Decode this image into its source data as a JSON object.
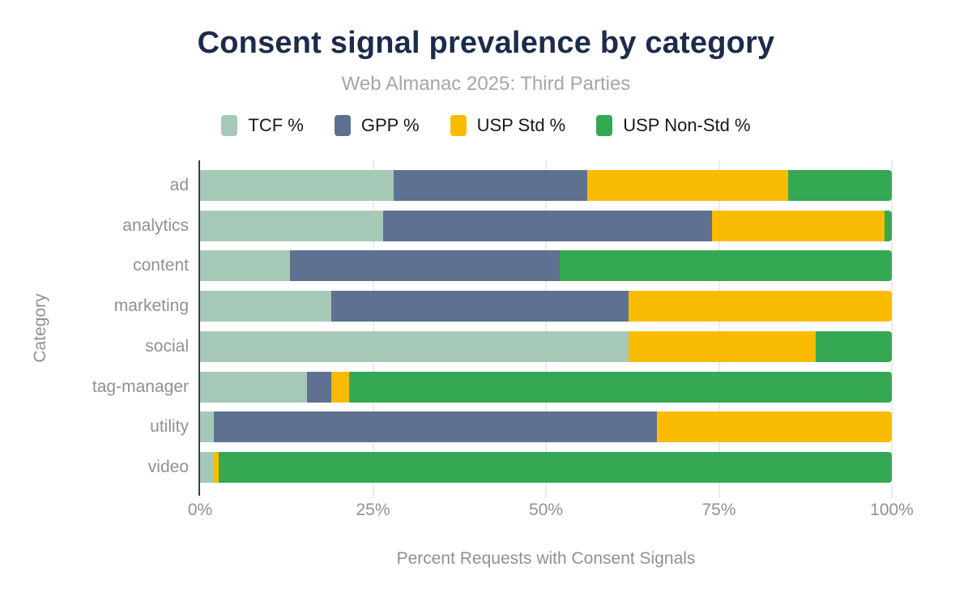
{
  "chart_data": {
    "type": "bar",
    "orientation": "horizontal",
    "stacked": true,
    "title": "Consent signal prevalence by category",
    "subtitle": "Web Almanac 2025: Third Parties",
    "categories": [
      "ad",
      "analytics",
      "content",
      "marketing",
      "social",
      "tag-manager",
      "utility",
      "video"
    ],
    "series": [
      {
        "name": "TCF %",
        "color": "#a6c9b7",
        "values": [
          28,
          26.5,
          13,
          19,
          62,
          15.5,
          2,
          2
        ]
      },
      {
        "name": "GPP %",
        "color": "#5f7190",
        "values": [
          28,
          47.5,
          39,
          43,
          0,
          3.5,
          64,
          0
        ]
      },
      {
        "name": "USP Std %",
        "color": "#fabc02",
        "values": [
          29,
          25,
          0,
          38,
          27,
          2.5,
          34,
          0.7
        ]
      },
      {
        "name": "USP Non-Std %",
        "color": "#34a853",
        "values": [
          15,
          1,
          48,
          0,
          11,
          78.5,
          0,
          97.3
        ]
      }
    ],
    "x_ticks": [
      "0%",
      "25%",
      "50%",
      "75%",
      "100%"
    ],
    "xlim": [
      0,
      100
    ],
    "xlabel": "Percent Requests with Consent Signals",
    "ylabel": "Category",
    "grid": true,
    "legend_position": "top"
  },
  "colors": {
    "title": "#1c2b4a",
    "subtitle": "#a6a6a6",
    "axis_text": "#8d9195",
    "legend_text": "#181818",
    "gridline": "#ebebeb",
    "axis_line": "#3b3e42",
    "background": "#ffffff"
  }
}
